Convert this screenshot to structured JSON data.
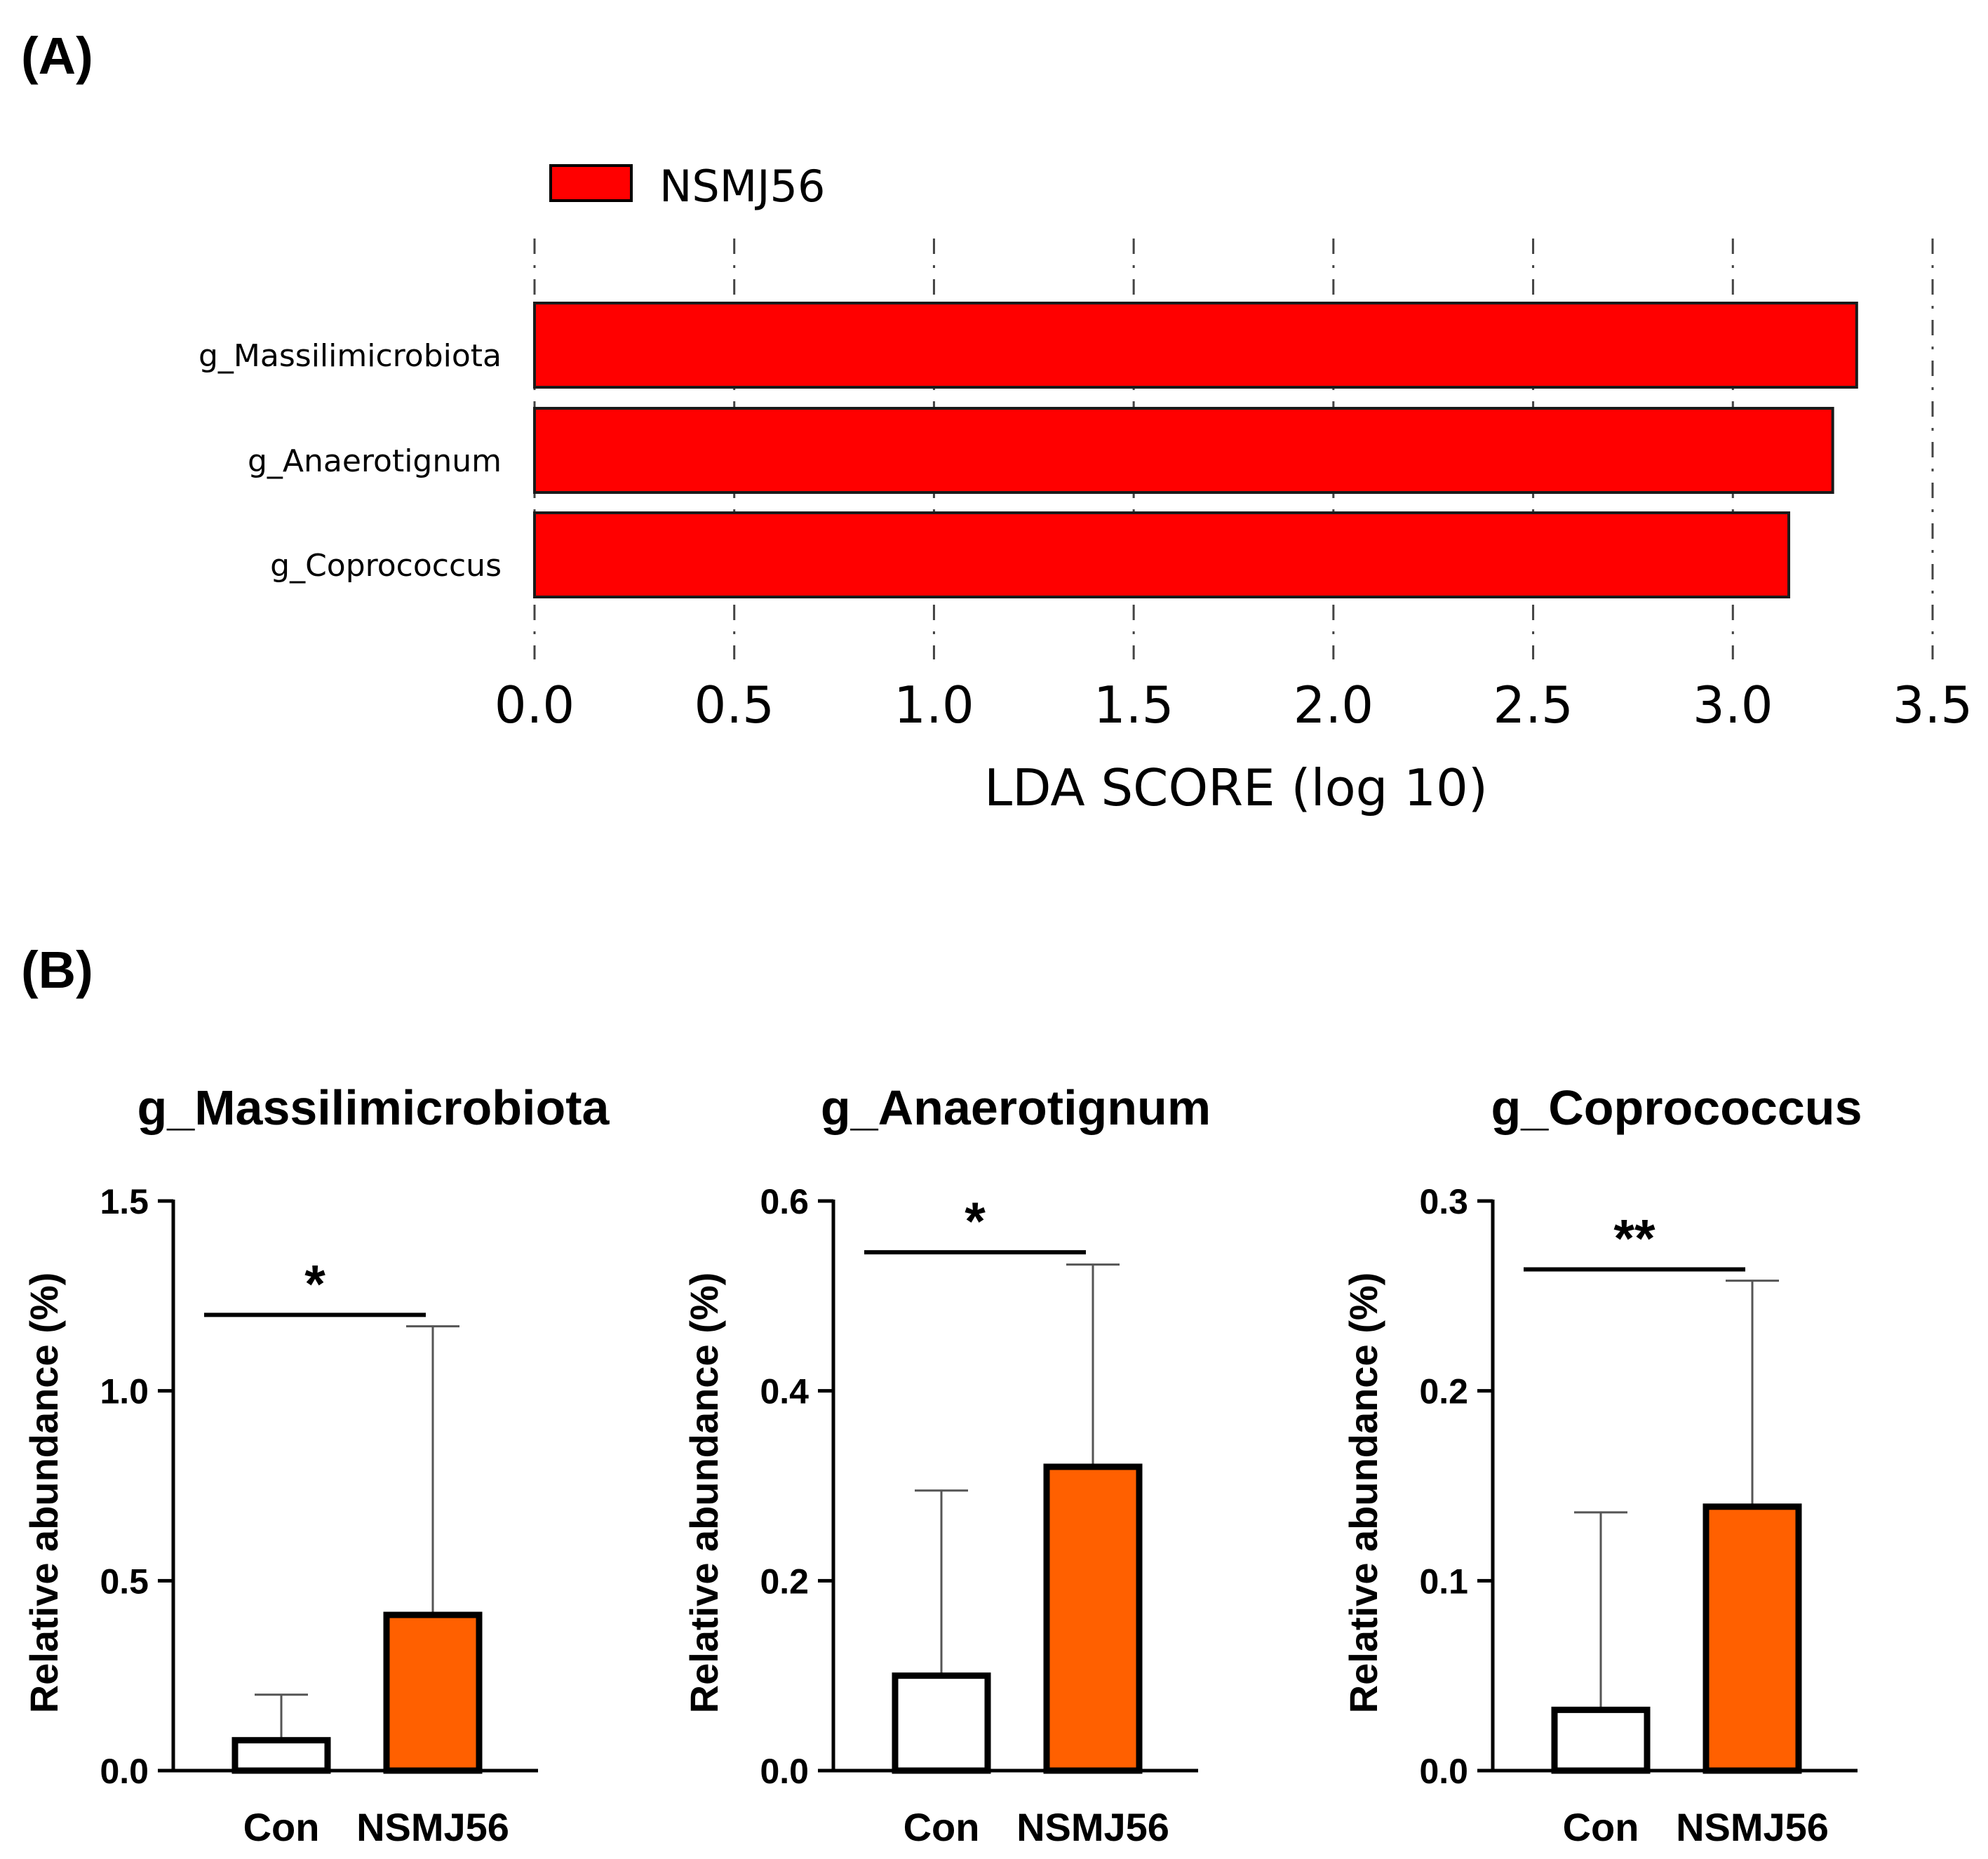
{
  "chart_data": [
    {
      "panel": "(A)",
      "type": "bar",
      "orientation": "horizontal",
      "title": "",
      "legend": [
        {
          "label": "NSMJ56",
          "color": "#ff0000"
        }
      ],
      "legend_position": "top-left",
      "categories": [
        "g_Massilimicrobiota",
        "g_Anaerotignum",
        "g_Coprococcus"
      ],
      "values": [
        3.31,
        3.25,
        3.14
      ],
      "xlabel": "LDA SCORE (log 10)",
      "xticks": [
        "0.0",
        "0.5",
        "1.0",
        "1.5",
        "2.0",
        "2.5",
        "3.0",
        "3.5"
      ],
      "xlim": [
        0,
        3.5
      ],
      "grid": "vertical dashed",
      "bar_color": "#ff0000"
    },
    {
      "panel": "(B)",
      "type": "bar",
      "title": "g_Massilimicrobiota",
      "ylabel": "Relative abundance (%)",
      "categories": [
        "Con",
        "NSMJ56"
      ],
      "values": [
        0.08,
        0.41
      ],
      "error_upper": [
        0.2,
        1.17
      ],
      "ylim": [
        0,
        1.5
      ],
      "yticks": [
        "0.0",
        "0.5",
        "1.0",
        "1.5"
      ],
      "colors": [
        "#ffffff",
        "#ff6000"
      ],
      "significance": "*",
      "sig_level": 1.2
    },
    {
      "panel": "(B)",
      "type": "bar",
      "title": "g_Anaerotignum",
      "ylabel": "Relative abundance (%)",
      "categories": [
        "Con",
        "NSMJ56"
      ],
      "values": [
        0.1,
        0.32
      ],
      "error_upper": [
        0.295,
        0.533
      ],
      "ylim": [
        0,
        0.6
      ],
      "yticks": [
        "0.0",
        "0.2",
        "0.4",
        "0.6"
      ],
      "colors": [
        "#ffffff",
        "#ff6000"
      ],
      "significance": "*",
      "sig_level": 0.546
    },
    {
      "panel": "(B)",
      "type": "bar",
      "title": "g_Coprococcus",
      "ylabel": "Relative abundance (%)",
      "categories": [
        "Con",
        "NSMJ56"
      ],
      "values": [
        0.032,
        0.139
      ],
      "error_upper": [
        0.136,
        0.258
      ],
      "ylim": [
        0,
        0.3
      ],
      "yticks": [
        "0.0",
        "0.1",
        "0.2",
        "0.3"
      ],
      "colors": [
        "#ffffff",
        "#ff6000"
      ],
      "significance": "**",
      "sig_level": 0.264
    }
  ]
}
